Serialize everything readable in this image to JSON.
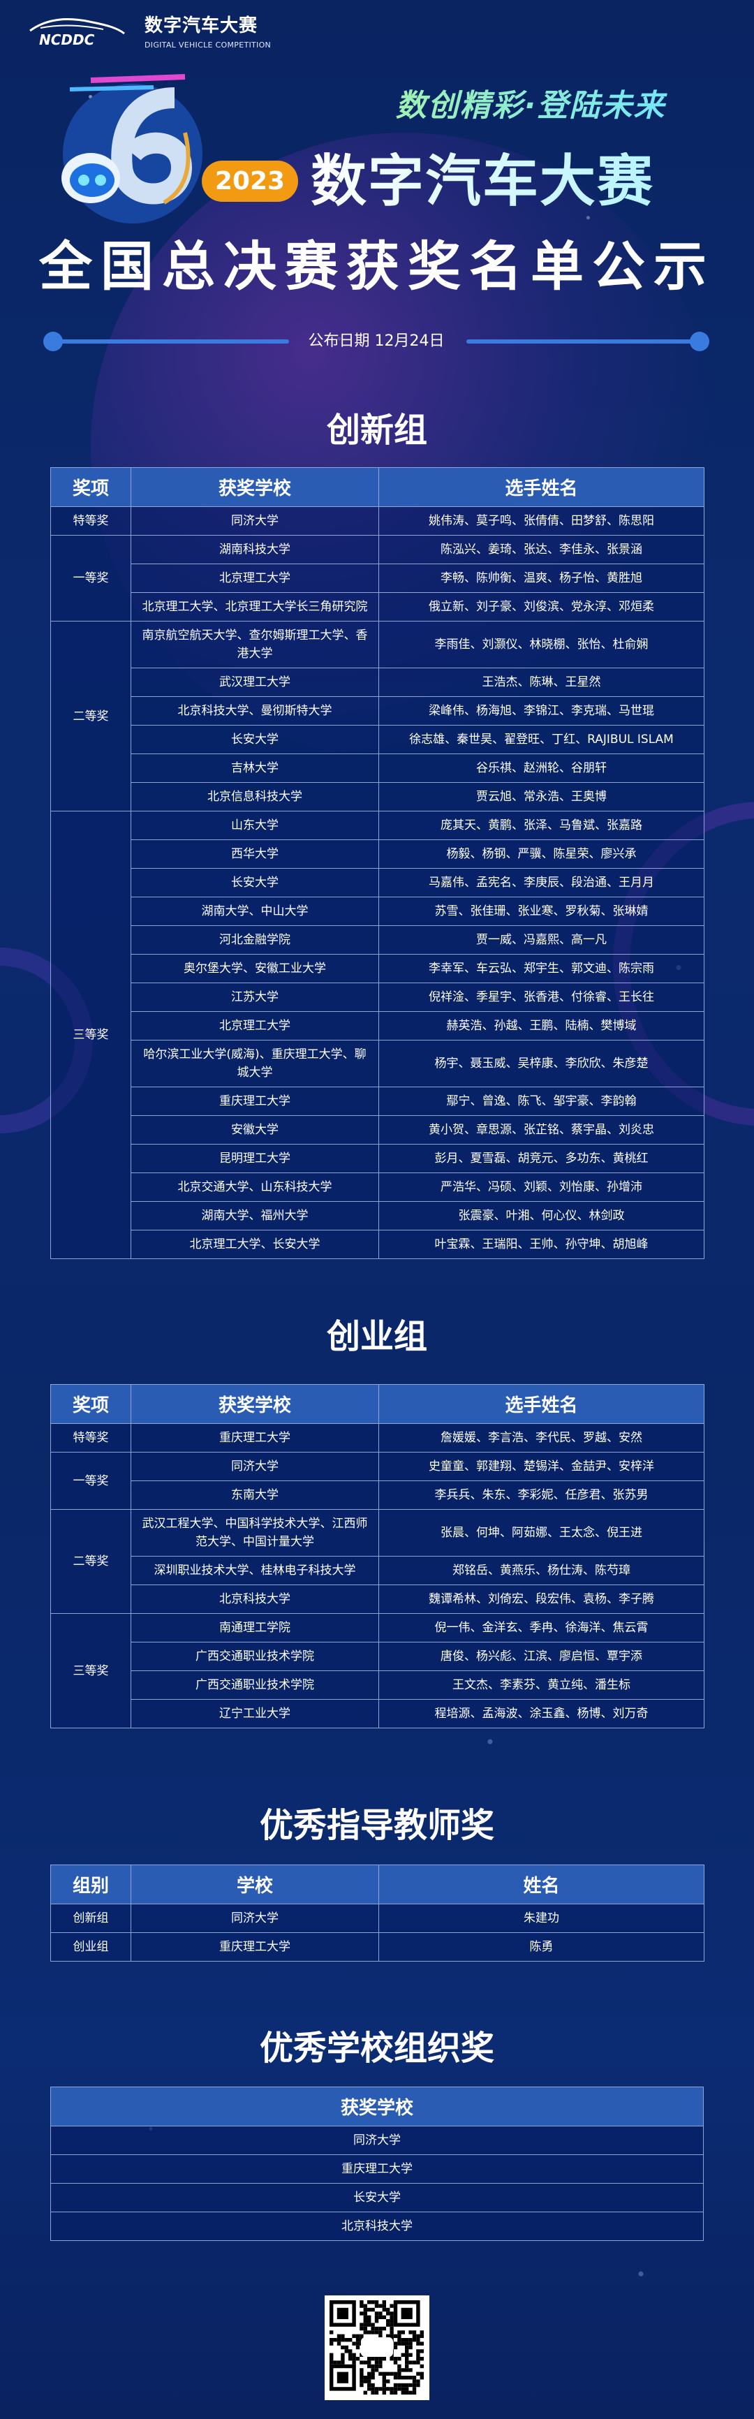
{
  "header": {
    "logo_text": "数字汽车大赛",
    "logo_en": "DIGITAL VEHICLE COMPETITION",
    "logo_mark": "NCDDC",
    "slogan": "数创精彩·登陆未来",
    "year_badge": "2023",
    "event_title": "数字汽车大赛",
    "main_title": "全国总决赛获奖名单公示",
    "publish_date": "公布日期 12月24日",
    "colors": {
      "badge": "#f39a13",
      "line": "#3a7be0",
      "slogan": "#7ff0c8"
    }
  },
  "innovation": {
    "title": "创新组",
    "headers": [
      "奖项",
      "获奖学校",
      "选手姓名"
    ],
    "groups": [
      {
        "award": "特等奖",
        "rows": [
          {
            "school": "同济大学",
            "names": "姚伟涛、莫子鸣、张倩倩、田梦舒、陈思阳"
          }
        ]
      },
      {
        "award": "一等奖",
        "rows": [
          {
            "school": "湖南科技大学",
            "names": "陈泓兴、姜琦、张达、李佳永、张景涵"
          },
          {
            "school": "北京理工大学",
            "names": "李畅、陈帅衡、温爽、杨子怡、黄胜旭"
          },
          {
            "school": "北京理工大学、北京理工大学长三角研究院",
            "names": "俄立新、刘子豪、刘俊滨、党永淳、邓烜柔"
          }
        ]
      },
      {
        "award": "二等奖",
        "rows": [
          {
            "school": "南京航空航天大学、查尔姆斯理工大学、香港大学",
            "names": "李雨佳、刘灏仪、林晓棚、张怡、杜俞娴"
          },
          {
            "school": "武汉理工大学",
            "names": "王浩杰、陈琳、王星然"
          },
          {
            "school": "北京科技大学、曼彻斯特大学",
            "names": "梁峰伟、杨海旭、李锦江、李克瑞、马世琨"
          },
          {
            "school": "长安大学",
            "names": "徐志雄、秦世昊、翟登旺、丁红、RAJIBUL ISLAM"
          },
          {
            "school": "吉林大学",
            "names": "谷乐祺、赵洲轮、谷朋轩"
          },
          {
            "school": "北京信息科技大学",
            "names": "贾云旭、常永浩、王奥博"
          }
        ]
      },
      {
        "award": "三等奖",
        "rows": [
          {
            "school": "山东大学",
            "names": "庞其天、黄鹏、张泽、马鲁斌、张嘉路"
          },
          {
            "school": "西华大学",
            "names": "杨毅、杨钢、严骥、陈星荣、廖兴承"
          },
          {
            "school": "长安大学",
            "names": "马嘉伟、孟宪名、李庚辰、段治通、王月月"
          },
          {
            "school": "湖南大学、中山大学",
            "names": "苏雪、张佳珊、张业寒、罗秋菊、张琳婧"
          },
          {
            "school": "河北金融学院",
            "names": "贾一威、冯嘉熙、高一凡"
          },
          {
            "school": "奥尔堡大学、安徽工业大学",
            "names": "李幸军、车云弘、郑宇生、郭文迪、陈宗雨"
          },
          {
            "school": "江苏大学",
            "names": "倪祥淦、季星宇、张香港、付徐睿、王长往"
          },
          {
            "school": "北京理工大学",
            "names": "赫英浩、孙越、王鹏、陆楠、樊博域"
          },
          {
            "school": "哈尔滨工业大学(威海)、重庆理工大学、聊城大学",
            "names": "杨宇、聂玉威、吴梓康、李欣欣、朱彦楚"
          },
          {
            "school": "重庆理工大学",
            "names": "鄢宁、曾逸、陈飞、邹宇豪、李韵翰"
          },
          {
            "school": "安徽大学",
            "names": "黄小贺、章思源、张芷铭、蔡宇晶、刘炎忠"
          },
          {
            "school": "昆明理工大学",
            "names": "彭月、夏雪磊、胡竞元、多功东、黄桃红"
          },
          {
            "school": "北京交通大学、山东科技大学",
            "names": "严浩华、冯硕、刘颖、刘怡康、孙增沛"
          },
          {
            "school": "湖南大学、福州大学",
            "names": "张震豪、叶湘、何心仪、林剑政"
          },
          {
            "school": "北京理工大学、长安大学",
            "names": "叶宝霖、王瑞阳、王帅、孙守坤、胡旭峰"
          }
        ]
      }
    ]
  },
  "startup": {
    "title": "创业组",
    "headers": [
      "奖项",
      "获奖学校",
      "选手姓名"
    ],
    "groups": [
      {
        "award": "特等奖",
        "rows": [
          {
            "school": "重庆理工大学",
            "names": "詹媛媛、李言浩、李代民、罗越、安然"
          }
        ]
      },
      {
        "award": "一等奖",
        "rows": [
          {
            "school": "同济大学",
            "names": "史童童、郭建翔、楚锡洋、金喆尹、安梓洋"
          },
          {
            "school": "东南大学",
            "names": "李兵兵、朱东、李彩妮、任彦君、张苏男"
          }
        ]
      },
      {
        "award": "二等奖",
        "rows": [
          {
            "school": "武汉工程大学、中国科学技术大学、江西师范大学、中国计量大学",
            "names": "张晨、何坤、阿茹娜、王太念、倪王进"
          },
          {
            "school": "深圳职业技术大学、桂林电子科技大学",
            "names": "郑铭岳、黄燕乐、杨仕涛、陈芍璋"
          },
          {
            "school": "北京科技大学",
            "names": "魏谭希林、刘倚宏、段宏伟、袁杨、李子腾"
          }
        ]
      },
      {
        "award": "三等奖",
        "rows": [
          {
            "school": "南通理工学院",
            "names": "倪一伟、金洋玄、季冉、徐海洋、焦云霄"
          },
          {
            "school": "广西交通职业技术学院",
            "names": "唐俊、杨兴彪、江滨、廖启恒、覃宇添"
          },
          {
            "school": "广西交通职业技术学院",
            "names": "王文杰、李素芬、黄立纯、潘生标"
          },
          {
            "school": "辽宁工业大学",
            "names": "程培源、孟海波、涂玉鑫、杨博、刘万奇"
          }
        ]
      }
    ]
  },
  "teachers": {
    "title": "优秀指导教师奖",
    "headers": [
      "组别",
      "学校",
      "姓名"
    ],
    "rows": [
      [
        "创新组",
        "同济大学",
        "朱建功"
      ],
      [
        "创业组",
        "重庆理工大学",
        "陈勇"
      ]
    ]
  },
  "schools": {
    "title": "优秀学校组织奖",
    "header": "获奖学校",
    "rows": [
      "同济大学",
      "重庆理工大学",
      "长安大学",
      "北京科技大学"
    ]
  },
  "qr_icon": "qr-code"
}
